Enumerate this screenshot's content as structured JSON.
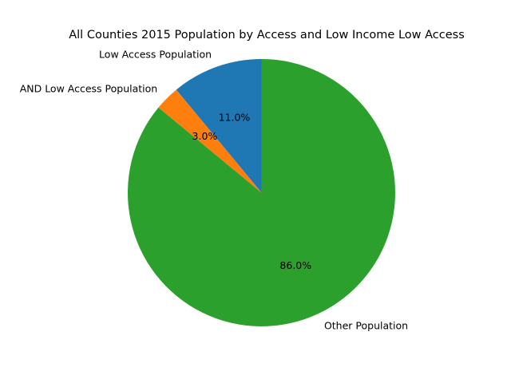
{
  "chart_data": {
    "type": "pie",
    "title": "All Counties 2015 Population by Access and Low Income Low Access",
    "start_angle_deg": 90,
    "direction": "counterclockwise",
    "slices": [
      {
        "label": "Low Access Population",
        "value": 11.0,
        "pct_label": "11.0%",
        "color": "#1f77b4"
      },
      {
        "label": "AND Low Access Population",
        "value": 3.0,
        "pct_label": "3.0%",
        "color": "#ff7f0e"
      },
      {
        "label": "Other Population",
        "value": 86.0,
        "pct_label": "86.0%",
        "color": "#2ca02c"
      }
    ]
  }
}
